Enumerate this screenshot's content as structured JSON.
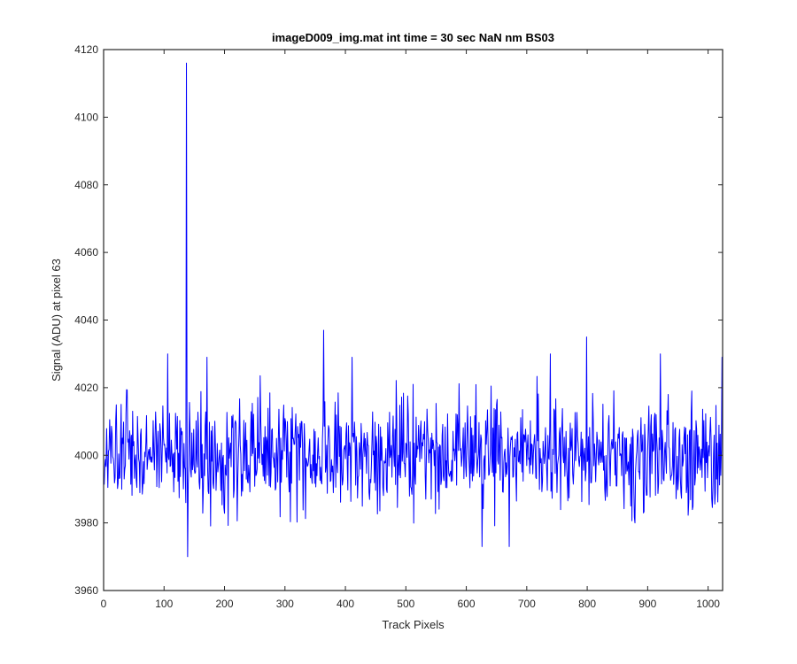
{
  "figure": {
    "background": "#ffffff"
  },
  "chart_data": {
    "type": "line",
    "title": "imageD009_img.mat int time = 30 sec  NaN nm BS03",
    "xlabel": "Track Pixels",
    "ylabel": "Signal (ADU) at pixel 63",
    "xlim": [
      0,
      1024
    ],
    "ylim": [
      3960,
      4120
    ],
    "xticks": [
      0,
      100,
      200,
      300,
      400,
      500,
      600,
      700,
      800,
      900,
      1000
    ],
    "yticks": [
      3960,
      3980,
      4000,
      4020,
      4040,
      4060,
      4080,
      4100,
      4120
    ],
    "grid": false,
    "line_color": "#0000ff",
    "series": [
      {
        "points_n": 1024,
        "baseline": 4000,
        "noise_std": 8,
        "spike_points": [
          [
            105,
            4030
          ],
          [
            135,
            3986
          ],
          [
            136,
            4116
          ],
          [
            137,
            4010
          ],
          [
            138,
            3970
          ],
          [
            170,
            4029
          ],
          [
            363,
            4037
          ],
          [
            410,
            4029
          ],
          [
            625,
            3973
          ],
          [
            670,
            3973
          ],
          [
            738,
            4030
          ],
          [
            798,
            4035
          ],
          [
            878,
            3980
          ],
          [
            920,
            4030
          ],
          [
            1022,
            4029
          ]
        ]
      }
    ]
  }
}
